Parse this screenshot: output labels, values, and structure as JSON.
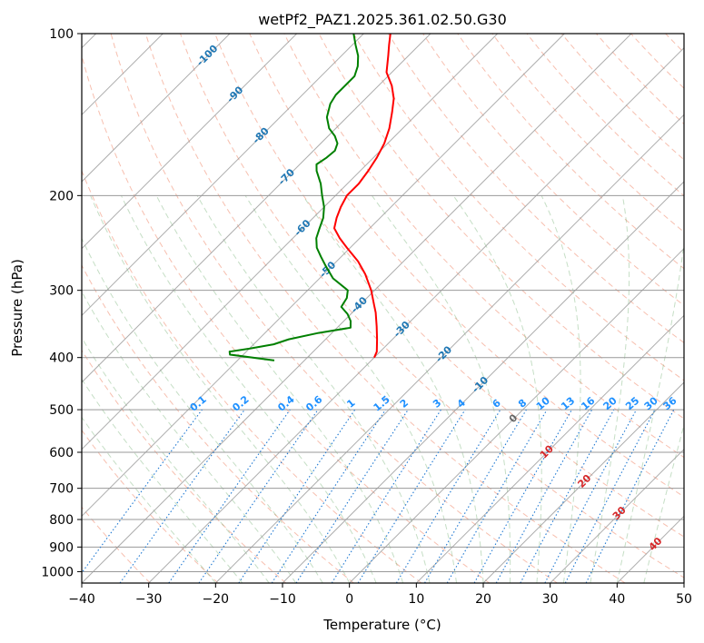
{
  "chart_data": {
    "type": "line",
    "chart_kind": "skew-T log-P sounding",
    "title": "wetPf2_PAZ1.2025.361.02.50.G30",
    "xlabel": "Temperature (°C)",
    "ylabel": "Pressure (hPa)",
    "xlim": [
      -40,
      50
    ],
    "ylim": [
      1050,
      100
    ],
    "y_scale": "log",
    "grid": true,
    "x_ticks": [
      -40,
      -30,
      -20,
      -10,
      0,
      10,
      20,
      30,
      40,
      50
    ],
    "x_tick_labels": [
      "−40",
      "−30",
      "−20",
      "−10",
      "0",
      "10",
      "20",
      "30",
      "40",
      "50"
    ],
    "y_ticks": [
      1000,
      900,
      800,
      700,
      600,
      500,
      400,
      300,
      200,
      100
    ],
    "y_tick_labels": [
      "1000",
      "900",
      "800",
      "700",
      "600",
      "500",
      "400",
      "300",
      "200",
      "100"
    ],
    "isotherm_labels": [
      "-100",
      "-90",
      "-80",
      "-70",
      "-60",
      "-50",
      "-40",
      "-30",
      "-20",
      "-10",
      "0",
      "10",
      "20",
      "30",
      "40"
    ],
    "mixing_ratio_labels": [
      "0.1",
      "0.2",
      "0.4",
      "0.6",
      "1",
      "1.5",
      "2",
      "3",
      "4",
      "6",
      "8",
      "10",
      "13",
      "16",
      "20",
      "25",
      "30",
      "36"
    ],
    "series": [
      {
        "role": "temperature",
        "color": "#ff0000",
        "points": [
          {
            "p": 400,
            "t": -30.0
          },
          {
            "p": 390,
            "t": -30.5
          },
          {
            "p": 370,
            "t": -32.3
          },
          {
            "p": 350,
            "t": -34.3
          },
          {
            "p": 330,
            "t": -36.5
          },
          {
            "p": 320,
            "t": -37.8
          },
          {
            "p": 300,
            "t": -40.5
          },
          {
            "p": 280,
            "t": -43.8
          },
          {
            "p": 265,
            "t": -46.8
          },
          {
            "p": 250,
            "t": -50.5
          },
          {
            "p": 240,
            "t": -53.0
          },
          {
            "p": 230,
            "t": -55.3
          },
          {
            "p": 220,
            "t": -56.5
          },
          {
            "p": 210,
            "t": -57.5
          },
          {
            "p": 200,
            "t": -58.3
          },
          {
            "p": 190,
            "t": -58.3
          },
          {
            "p": 180,
            "t": -58.8
          },
          {
            "p": 170,
            "t": -59.5
          },
          {
            "p": 160,
            "t": -60.5
          },
          {
            "p": 150,
            "t": -62.0
          },
          {
            "p": 140,
            "t": -64.0
          },
          {
            "p": 132,
            "t": -65.8
          },
          {
            "p": 125,
            "t": -68.0
          },
          {
            "p": 118,
            "t": -70.8
          },
          {
            "p": 110,
            "t": -73.0
          },
          {
            "p": 105,
            "t": -74.5
          },
          {
            "p": 100,
            "t": -76.0
          }
        ]
      },
      {
        "role": "dewpoint",
        "color": "#008000",
        "points": [
          {
            "p": 405,
            "t": -44.5
          },
          {
            "p": 395,
            "t": -52.0
          },
          {
            "p": 390,
            "t": -52.5
          },
          {
            "p": 385,
            "t": -50.0
          },
          {
            "p": 378,
            "t": -47.0
          },
          {
            "p": 370,
            "t": -45.5
          },
          {
            "p": 360,
            "t": -42.0
          },
          {
            "p": 352,
            "t": -38.0
          },
          {
            "p": 342,
            "t": -39.0
          },
          {
            "p": 332,
            "t": -40.5
          },
          {
            "p": 322,
            "t": -42.5
          },
          {
            "p": 310,
            "t": -43.0
          },
          {
            "p": 300,
            "t": -44.0
          },
          {
            "p": 285,
            "t": -48.0
          },
          {
            "p": 270,
            "t": -51.0
          },
          {
            "p": 260,
            "t": -53.0
          },
          {
            "p": 250,
            "t": -55.0
          },
          {
            "p": 240,
            "t": -56.5
          },
          {
            "p": 230,
            "t": -57.5
          },
          {
            "p": 220,
            "t": -58.5
          },
          {
            "p": 210,
            "t": -60.0
          },
          {
            "p": 200,
            "t": -62.0
          },
          {
            "p": 190,
            "t": -64.0
          },
          {
            "p": 180,
            "t": -66.5
          },
          {
            "p": 175,
            "t": -67.5
          },
          {
            "p": 170,
            "t": -67.0
          },
          {
            "p": 165,
            "t": -66.8
          },
          {
            "p": 160,
            "t": -67.5
          },
          {
            "p": 155,
            "t": -69.0
          },
          {
            "p": 150,
            "t": -71.0
          },
          {
            "p": 143,
            "t": -73.0
          },
          {
            "p": 135,
            "t": -74.5
          },
          {
            "p": 130,
            "t": -75.0
          },
          {
            "p": 125,
            "t": -75.0
          },
          {
            "p": 120,
            "t": -75.0
          },
          {
            "p": 115,
            "t": -76.0
          },
          {
            "p": 110,
            "t": -77.5
          },
          {
            "p": 105,
            "t": -79.5
          },
          {
            "p": 100,
            "t": -81.5
          }
        ]
      }
    ]
  }
}
